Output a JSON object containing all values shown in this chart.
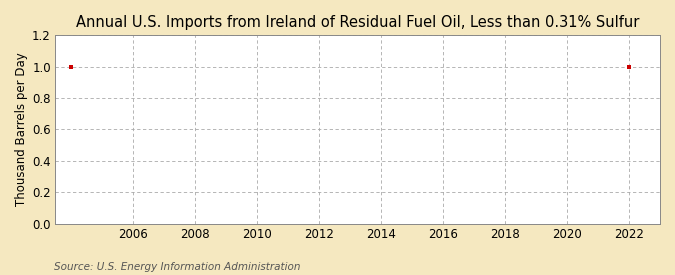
{
  "title": "Annual U.S. Imports from Ireland of Residual Fuel Oil, Less than 0.31% Sulfur",
  "ylabel": "Thousand Barrels per Day",
  "source_text": "Source: U.S. Energy Information Administration",
  "xlim": [
    2003.5,
    2023.0
  ],
  "ylim": [
    0.0,
    1.2
  ],
  "yticks": [
    0.0,
    0.2,
    0.4,
    0.6,
    0.8,
    1.0,
    1.2
  ],
  "xticks": [
    2006,
    2008,
    2010,
    2012,
    2014,
    2016,
    2018,
    2020,
    2022
  ],
  "data_x": [
    2004,
    2022
  ],
  "data_y": [
    1.0,
    1.0
  ],
  "marker_color": "#cc0000",
  "background_color": "#f5e8c0",
  "plot_bg_color": "#ffffff",
  "grid_color": "#aaaaaa",
  "title_fontsize": 10.5,
  "axis_label_fontsize": 8.5,
  "tick_fontsize": 8.5,
  "source_fontsize": 7.5
}
